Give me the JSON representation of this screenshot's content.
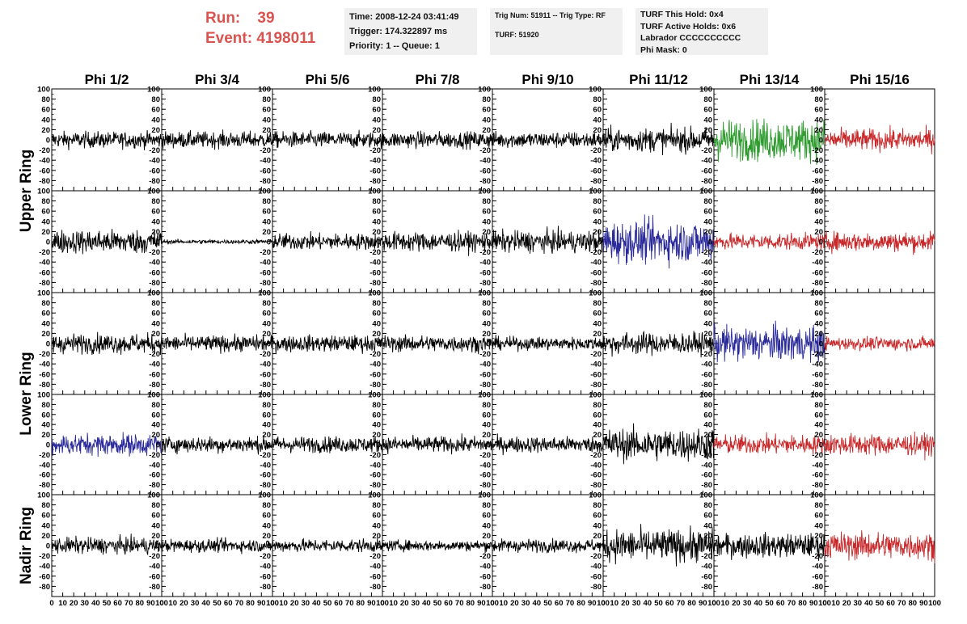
{
  "header": {
    "run_label": "Run:",
    "run_value": "39",
    "event_label": "Event:",
    "event_value": "4198011",
    "info_time": "Time: 2008-12-24 03:41:49",
    "info_trigger": "Trigger: 174.322897 ms",
    "info_priority": "Priority: 1 -- Queue: 1",
    "info_trig": "Trig Num: 51911 -- Trig Type: RF",
    "info_turf": "TURF: 51920",
    "info_hold": "TURF This Hold: 0x4",
    "info_active": "TURF Active Holds: 0x6",
    "info_labrador": "Labrador CCCCCCCCCC",
    "info_phimask": "Phi Mask: 0"
  },
  "colors": {
    "run_text": "#d9534f",
    "black": "#000000",
    "green": "#2e9b2e",
    "blue": "#2a2a9a",
    "red": "#c8282a",
    "info_bg": "#f0f0f0"
  },
  "chart_data": {
    "type": "line",
    "columns": [
      "Phi 1/2",
      "Phi 3/4",
      "Phi 5/6",
      "Phi 7/8",
      "Phi 9/10",
      "Phi 11/12",
      "Phi 13/14",
      "Phi 15/16"
    ],
    "ring_labels": [
      "Upper Ring",
      "Lower Ring",
      "Nadir Ring"
    ],
    "ring_rows": [
      [
        0,
        1
      ],
      [
        2,
        3
      ],
      [
        4
      ]
    ],
    "xlim": [
      0,
      100
    ],
    "ylim": [
      -100,
      100
    ],
    "xticks": [
      "0",
      "10",
      "20",
      "30",
      "40",
      "50",
      "60",
      "70",
      "80",
      "90",
      "100"
    ],
    "yticks": [
      "100",
      "80",
      "60",
      "40",
      "20",
      "0",
      "-20",
      "-40",
      "-60",
      "-80",
      "-100"
    ],
    "trace_colors": [
      [
        "black",
        "black",
        "black",
        "black",
        "black",
        "black",
        "green",
        "red"
      ],
      [
        "black",
        "black",
        "black",
        "black",
        "black",
        "blue",
        "red",
        "red"
      ],
      [
        "black",
        "black",
        "black",
        "black",
        "black",
        "black",
        "blue",
        "red"
      ],
      [
        "blue",
        "black",
        "black",
        "black",
        "black",
        "black",
        "red",
        "red"
      ],
      [
        "black",
        "black",
        "black",
        "black",
        "black",
        "black",
        "black",
        "red"
      ]
    ],
    "trace_amplitudes": [
      [
        15,
        15,
        15,
        15,
        15,
        22,
        38,
        20
      ],
      [
        22,
        4,
        15,
        18,
        20,
        38,
        15,
        18
      ],
      [
        18,
        15,
        15,
        15,
        12,
        20,
        32,
        12
      ],
      [
        20,
        15,
        15,
        15,
        15,
        30,
        18,
        20
      ],
      [
        15,
        12,
        12,
        10,
        12,
        30,
        22,
        25
      ]
    ]
  }
}
